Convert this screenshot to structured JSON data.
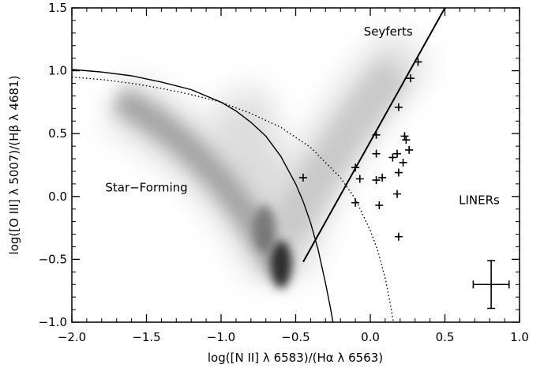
{
  "chart_data": {
    "type": "scatter",
    "title": "",
    "xlabel": "log([N II] λ 6583)/(Hα λ 6563)",
    "ylabel": "log([O III] λ 5007)/(Hβ λ 4681)",
    "xlim": [
      -2.0,
      1.0
    ],
    "ylim": [
      -1.0,
      1.5
    ],
    "x_ticks": [
      -2.0,
      -1.5,
      -1.0,
      -0.5,
      0.0,
      0.5,
      1.0
    ],
    "x_tick_labels": [
      "−2.0",
      "−1.5",
      "−1.0",
      "−0.5",
      "0.0",
      "0.5",
      "1.0"
    ],
    "y_ticks": [
      -1.0,
      -0.5,
      0.0,
      0.5,
      1.0,
      1.5
    ],
    "y_tick_labels": [
      "−1.0",
      "−0.5",
      "0.0",
      "0.5",
      "1.0",
      "1.5"
    ],
    "grid": false,
    "legend": "none",
    "region_labels": [
      {
        "text": "Seyferts",
        "x": 0.12,
        "y": 1.28
      },
      {
        "text": "Star−Forming",
        "x": -1.5,
        "y": 0.04
      },
      {
        "text": "LINERs",
        "x": 0.73,
        "y": -0.06
      }
    ],
    "points": [
      {
        "x": -0.45,
        "y": 0.15
      },
      {
        "x": 0.32,
        "y": 1.07
      },
      {
        "x": 0.27,
        "y": 0.94
      },
      {
        "x": 0.19,
        "y": 0.71
      },
      {
        "x": 0.04,
        "y": 0.49
      },
      {
        "x": 0.23,
        "y": 0.48
      },
      {
        "x": 0.24,
        "y": 0.45
      },
      {
        "x": 0.04,
        "y": 0.34
      },
      {
        "x": 0.26,
        "y": 0.37
      },
      {
        "x": 0.18,
        "y": 0.34
      },
      {
        "x": 0.15,
        "y": 0.31
      },
      {
        "x": 0.22,
        "y": 0.27
      },
      {
        "x": -0.1,
        "y": 0.23
      },
      {
        "x": 0.19,
        "y": 0.19
      },
      {
        "x": -0.07,
        "y": 0.14
      },
      {
        "x": 0.08,
        "y": 0.15
      },
      {
        "x": 0.04,
        "y": 0.13
      },
      {
        "x": 0.18,
        "y": 0.02
      },
      {
        "x": -0.1,
        "y": -0.05
      },
      {
        "x": 0.06,
        "y": -0.07
      },
      {
        "x": 0.19,
        "y": -0.32
      }
    ],
    "error_bar": {
      "x": 0.81,
      "y": -0.7,
      "xerr": 0.12,
      "yerr": 0.19
    },
    "curves": [
      {
        "style": "solid",
        "label": "",
        "x": [
          -2.0,
          -1.8,
          -1.6,
          -1.4,
          -1.2,
          -1.0,
          -0.9,
          -0.8,
          -0.7,
          -0.6,
          -0.5,
          -0.45,
          -0.4,
          -0.35,
          -0.3,
          -0.27,
          -0.25,
          -0.23
        ],
        "y": [
          1.01,
          0.99,
          0.96,
          0.91,
          0.85,
          0.75,
          0.68,
          0.59,
          0.48,
          0.32,
          0.1,
          -0.04,
          -0.21,
          -0.42,
          -0.69,
          -0.87,
          -1.0,
          -1.15
        ]
      },
      {
        "style": "dotted",
        "label": "",
        "x": [
          -2.0,
          -1.8,
          -1.6,
          -1.4,
          -1.2,
          -1.0,
          -0.8,
          -0.6,
          -0.4,
          -0.2,
          -0.1,
          0.0,
          0.05,
          0.1,
          0.13,
          0.16,
          0.18
        ],
        "y": [
          0.95,
          0.93,
          0.9,
          0.86,
          0.81,
          0.75,
          0.66,
          0.55,
          0.39,
          0.15,
          -0.02,
          -0.27,
          -0.43,
          -0.65,
          -0.83,
          -1.03,
          -1.17
        ]
      },
      {
        "style": "solid-thick",
        "label": "",
        "x": [
          -0.45,
          0.5
        ],
        "y": [
          -0.52,
          1.5
        ]
      }
    ],
    "density_background": "gray"
  }
}
